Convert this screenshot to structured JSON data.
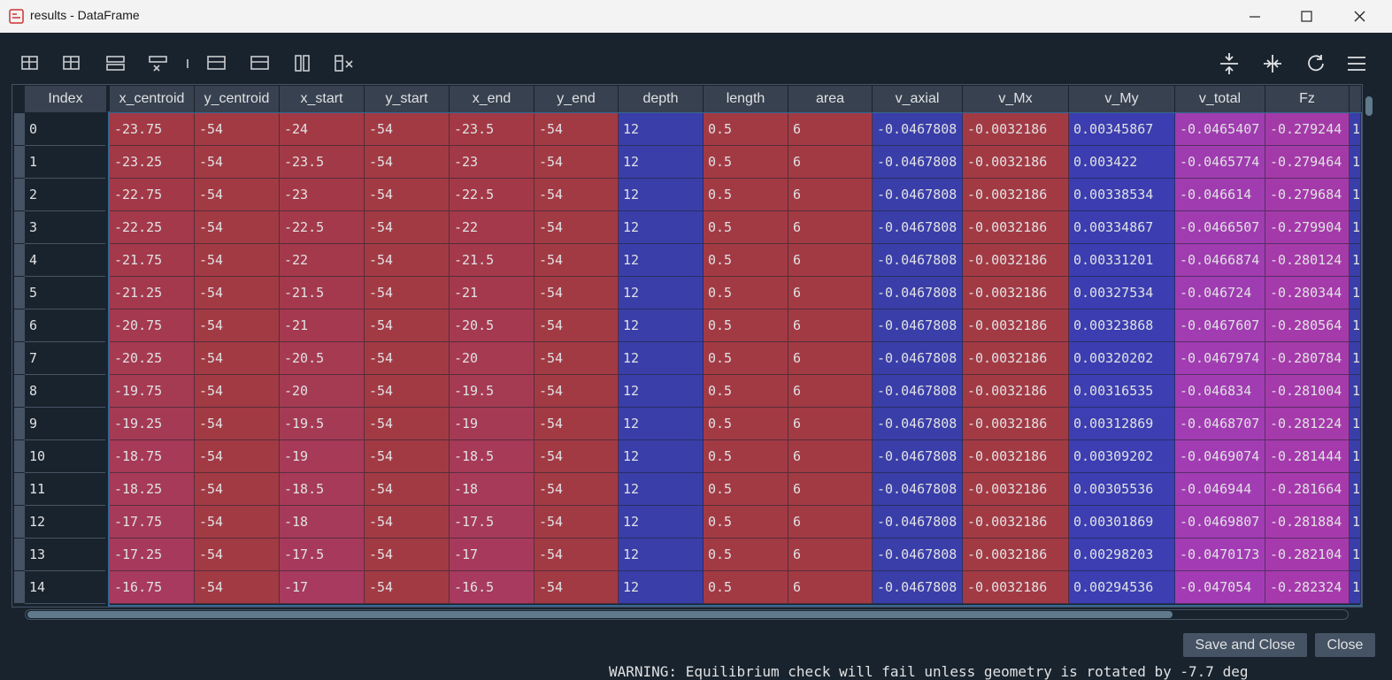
{
  "window": {
    "title": "results - DataFrame"
  },
  "table": {
    "index_header": "Index",
    "columns": [
      "x_centroid",
      "y_centroid",
      "x_start",
      "y_start",
      "x_end",
      "y_end",
      "depth",
      "length",
      "area",
      "v_axial",
      "v_Mx",
      "v_My",
      "v_total",
      "Fz"
    ],
    "index": [
      0,
      1,
      2,
      3,
      4,
      5,
      6,
      7,
      8,
      9,
      10,
      11,
      12,
      13,
      14
    ],
    "rows": [
      [
        -23.75,
        -54,
        -24,
        -54,
        -23.5,
        -54,
        12,
        0.5,
        6,
        -0.0467808,
        -0.0032186,
        0.00345867,
        -0.0465407,
        -0.279244
      ],
      [
        -23.25,
        -54,
        -23.5,
        -54,
        -23,
        -54,
        12,
        0.5,
        6,
        -0.0467808,
        -0.0032186,
        0.003422,
        -0.0465774,
        -0.279464
      ],
      [
        -22.75,
        -54,
        -23,
        -54,
        -22.5,
        -54,
        12,
        0.5,
        6,
        -0.0467808,
        -0.0032186,
        0.00338534,
        -0.046614,
        -0.279684
      ],
      [
        -22.25,
        -54,
        -22.5,
        -54,
        -22,
        -54,
        12,
        0.5,
        6,
        -0.0467808,
        -0.0032186,
        0.00334867,
        -0.0466507,
        -0.279904
      ],
      [
        -21.75,
        -54,
        -22,
        -54,
        -21.5,
        -54,
        12,
        0.5,
        6,
        -0.0467808,
        -0.0032186,
        0.00331201,
        -0.0466874,
        -0.280124
      ],
      [
        -21.25,
        -54,
        -21.5,
        -54,
        -21,
        -54,
        12,
        0.5,
        6,
        -0.0467808,
        -0.0032186,
        0.00327534,
        -0.046724,
        -0.280344
      ],
      [
        -20.75,
        -54,
        -21,
        -54,
        -20.5,
        -54,
        12,
        0.5,
        6,
        -0.0467808,
        -0.0032186,
        0.00323868,
        -0.0467607,
        -0.280564
      ],
      [
        -20.25,
        -54,
        -20.5,
        -54,
        -20,
        -54,
        12,
        0.5,
        6,
        -0.0467808,
        -0.0032186,
        0.00320202,
        -0.0467974,
        -0.280784
      ],
      [
        -19.75,
        -54,
        -20,
        -54,
        -19.5,
        -54,
        12,
        0.5,
        6,
        -0.0467808,
        -0.0032186,
        0.00316535,
        -0.046834,
        -0.281004
      ],
      [
        -19.25,
        -54,
        -19.5,
        -54,
        -19,
        -54,
        12,
        0.5,
        6,
        -0.0467808,
        -0.0032186,
        0.00312869,
        -0.0468707,
        -0.281224
      ],
      [
        -18.75,
        -54,
        -19,
        -54,
        -18.5,
        -54,
        12,
        0.5,
        6,
        -0.0467808,
        -0.0032186,
        0.00309202,
        -0.0469074,
        -0.281444
      ],
      [
        -18.25,
        -54,
        -18.5,
        -54,
        -18,
        -54,
        12,
        0.5,
        6,
        -0.0467808,
        -0.0032186,
        0.00305536,
        -0.046944,
        -0.281664
      ],
      [
        -17.75,
        -54,
        -18,
        -54,
        -17.5,
        -54,
        12,
        0.5,
        6,
        -0.0467808,
        -0.0032186,
        0.00301869,
        -0.0469807,
        -0.281884
      ],
      [
        -17.25,
        -54,
        -17.5,
        -54,
        -17,
        -54,
        12,
        0.5,
        6,
        -0.0467808,
        -0.0032186,
        0.00298203,
        -0.0470173,
        -0.282104
      ],
      [
        -16.75,
        -54,
        -17,
        -54,
        -16.5,
        -54,
        12,
        0.5,
        6,
        -0.0467808,
        -0.0032186,
        0.00294536,
        -0.047054,
        -0.282324
      ]
    ],
    "partial_column": [
      1,
      1,
      1,
      1,
      1,
      1,
      1,
      1,
      1,
      1,
      1,
      1,
      1,
      1,
      1
    ]
  },
  "buttons": {
    "save_and_close": "Save and Close",
    "close": "Close"
  },
  "background_text": "WARNING: Equilibrium check will fail unless geometry is rotated by -7.7 deg"
}
